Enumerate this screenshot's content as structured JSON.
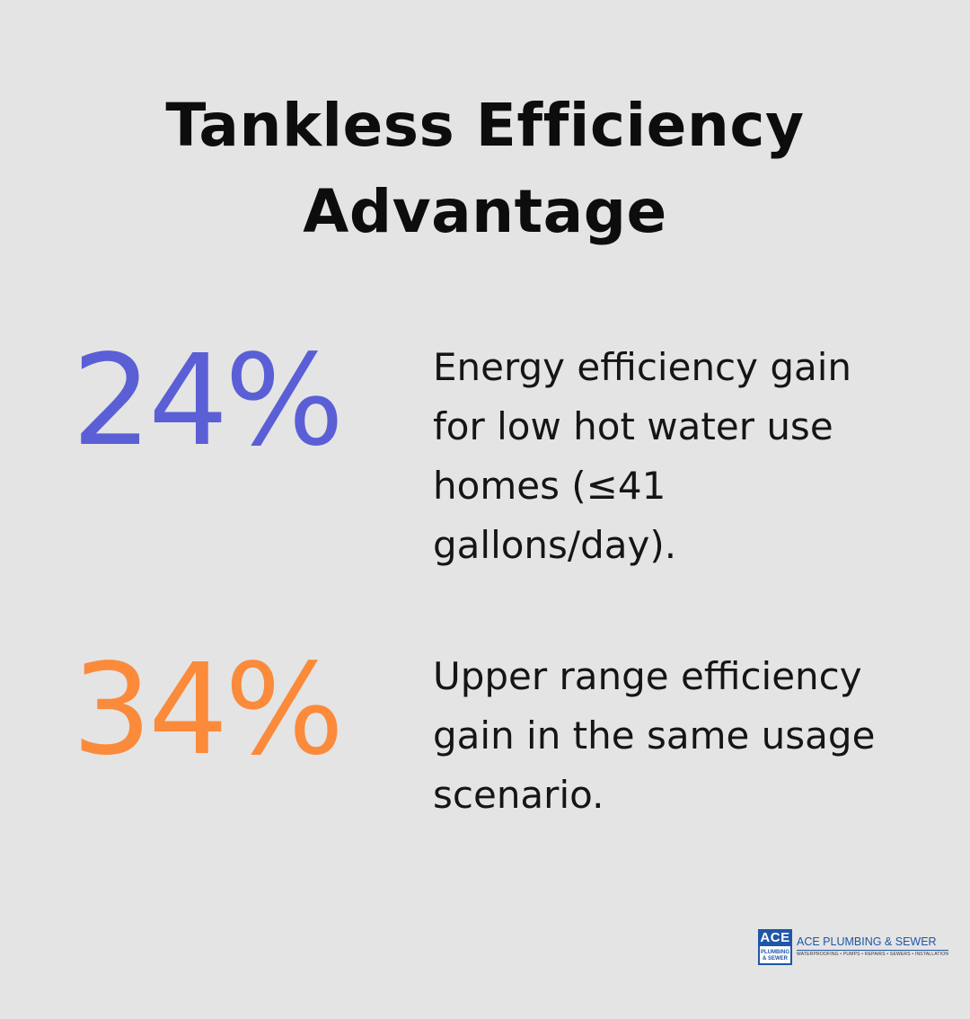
{
  "title": "Tankless Efficiency Advantage",
  "stats": [
    {
      "value": "24%",
      "color": "#5b5fd6",
      "description": "Energy efficiency gain for low hot water use homes (≤41 gallons/day)."
    },
    {
      "value": "34%",
      "color": "#fb8a3b",
      "description": "Upper range efficiency gain in the same usage scenario."
    }
  ],
  "logo": {
    "mark_top": "ACE",
    "mark_bottom_line1": "PLUMBING",
    "mark_bottom_line2": "& SEWER",
    "name": "ACE PLUMBING & SEWER",
    "tagline": "WATERPROOFING • PUMPS • REPAIRS • SEWERS • INSTALLATION",
    "brand_color": "#1f56a8"
  }
}
